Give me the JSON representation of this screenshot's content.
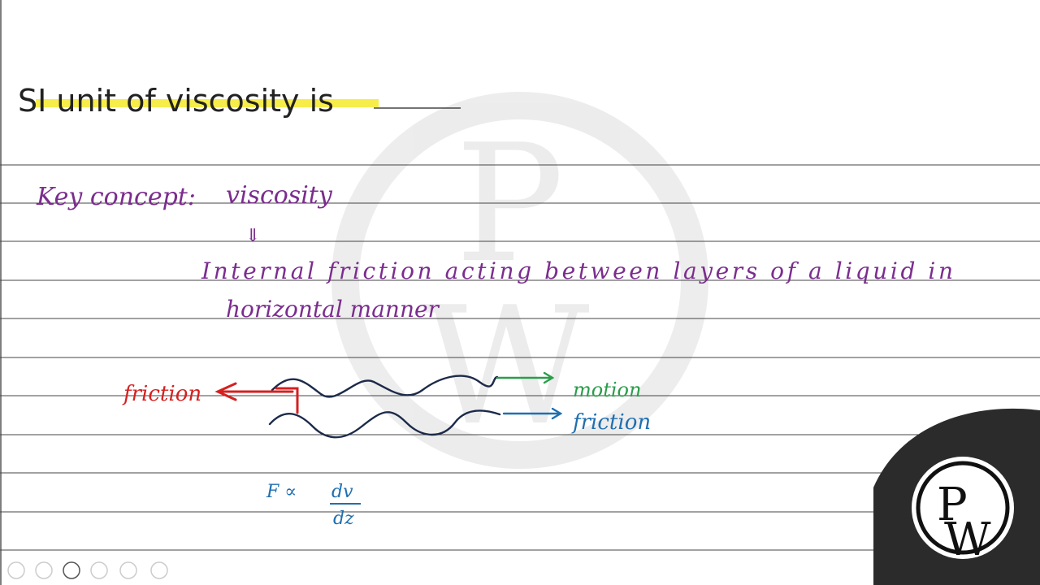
{
  "question": {
    "text": "SI unit of viscosity is"
  },
  "notes": {
    "key_label": "Key concept:",
    "key_term": "viscosity",
    "arrow": "⇓",
    "definition_line1": "Internal friction acting between layers of a liquid in",
    "definition_line2": "horizontal manner"
  },
  "diagram": {
    "left_label": "friction",
    "top_label": "motion",
    "bottom_label": "friction"
  },
  "formula": {
    "lhs": "F ∝",
    "numerator": "dv",
    "denominator": "dz"
  },
  "logo": {
    "top": "P",
    "bottom": "W"
  }
}
